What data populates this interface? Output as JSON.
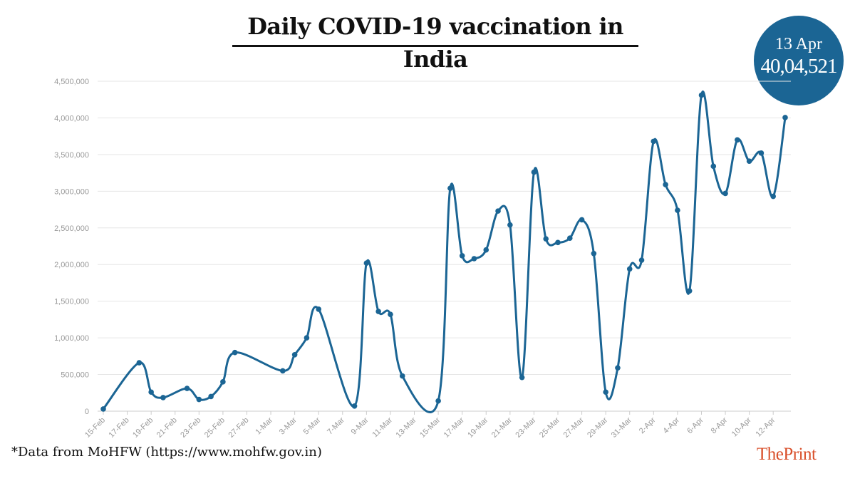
{
  "header": {
    "title": "Daily COVID-19 vaccination in India"
  },
  "badge": {
    "date": "13 Apr",
    "value": "40,04,521"
  },
  "footnote": "*Data from MoHFW (https://www.mohfw.gov.in)",
  "brand": "ThePrint",
  "colors": {
    "line": "#1b6594",
    "badge": "#1b6594",
    "brand": "#d9502b",
    "grid": "#e6e6e6",
    "axis_text": "#999999"
  },
  "chart_data": {
    "type": "line",
    "title": "Daily COVID-19 vaccination in India",
    "xlabel": "",
    "ylabel": "",
    "ylim": [
      0,
      4500000
    ],
    "yticks": [
      0,
      500000,
      1000000,
      1500000,
      2000000,
      2500000,
      3000000,
      3500000,
      4000000,
      4500000
    ],
    "ytick_labels": [
      "0",
      "500,000",
      "1,000,000",
      "1,500,000",
      "2,000,000",
      "2,500,000",
      "3,000,000",
      "3,500,000",
      "4,000,000",
      "4,500,000"
    ],
    "grid": true,
    "x_start": "2021-02-15",
    "x_end": "2021-04-13",
    "xtick_labels": [
      "15-Feb",
      "17-Feb",
      "19-Feb",
      "21-Feb",
      "23-Feb",
      "25-Feb",
      "27-Feb",
      "1-Mar",
      "3-Mar",
      "5-Mar",
      "7-Mar",
      "9-Mar",
      "11-Mar",
      "13-Mar",
      "15-Mar",
      "17-Mar",
      "19-Mar",
      "21-Mar",
      "23-Mar",
      "25-Mar",
      "27-Mar",
      "29-Mar",
      "31-Mar",
      "2-Apr",
      "4-Apr",
      "6-Apr",
      "8-Apr",
      "10-Apr",
      "12-Apr"
    ],
    "series": [
      {
        "points": [
          {
            "x": "15-Feb",
            "y": 30000
          },
          {
            "x": "18-Feb",
            "y": 660000
          },
          {
            "x": "19-Feb",
            "y": 260000
          },
          {
            "x": "20-Feb",
            "y": 185000
          },
          {
            "x": "22-Feb",
            "y": 310000
          },
          {
            "x": "23-Feb",
            "y": 160000
          },
          {
            "x": "24-Feb",
            "y": 200000
          },
          {
            "x": "25-Feb",
            "y": 400000
          },
          {
            "x": "26-Feb",
            "y": 800000
          },
          {
            "x": "2-Mar",
            "y": 550000
          },
          {
            "x": "3-Mar",
            "y": 770000
          },
          {
            "x": "4-Mar",
            "y": 1000000
          },
          {
            "x": "5-Mar",
            "y": 1390000
          },
          {
            "x": "8-Mar",
            "y": 70000
          },
          {
            "x": "9-Mar",
            "y": 2020000
          },
          {
            "x": "10-Mar",
            "y": 1360000
          },
          {
            "x": "11-Mar",
            "y": 1320000
          },
          {
            "x": "12-Mar",
            "y": 480000
          },
          {
            "x": "15-Mar",
            "y": 140000
          },
          {
            "x": "16-Mar",
            "y": 3040000
          },
          {
            "x": "17-Mar",
            "y": 2120000
          },
          {
            "x": "18-Mar",
            "y": 2080000
          },
          {
            "x": "19-Mar",
            "y": 2200000
          },
          {
            "x": "20-Mar",
            "y": 2730000
          },
          {
            "x": "21-Mar",
            "y": 2540000
          },
          {
            "x": "22-Mar",
            "y": 460000
          },
          {
            "x": "23-Mar",
            "y": 3260000
          },
          {
            "x": "24-Mar",
            "y": 2350000
          },
          {
            "x": "25-Mar",
            "y": 2300000
          },
          {
            "x": "26-Mar",
            "y": 2360000
          },
          {
            "x": "27-Mar",
            "y": 2610000
          },
          {
            "x": "28-Mar",
            "y": 2150000
          },
          {
            "x": "29-Mar",
            "y": 260000
          },
          {
            "x": "30-Mar",
            "y": 590000
          },
          {
            "x": "31-Mar",
            "y": 1940000
          },
          {
            "x": "1-Apr",
            "y": 2060000
          },
          {
            "x": "2-Apr",
            "y": 3680000
          },
          {
            "x": "3-Apr",
            "y": 3090000
          },
          {
            "x": "4-Apr",
            "y": 2740000
          },
          {
            "x": "5-Apr",
            "y": 1640000
          },
          {
            "x": "6-Apr",
            "y": 4310000
          },
          {
            "x": "7-Apr",
            "y": 3340000
          },
          {
            "x": "8-Apr",
            "y": 2970000
          },
          {
            "x": "9-Apr",
            "y": 3700000
          },
          {
            "x": "10-Apr",
            "y": 3410000
          },
          {
            "x": "11-Apr",
            "y": 3520000
          },
          {
            "x": "12-Apr",
            "y": 2930000
          },
          {
            "x": "13-Apr",
            "y": 4004521
          }
        ]
      }
    ]
  }
}
